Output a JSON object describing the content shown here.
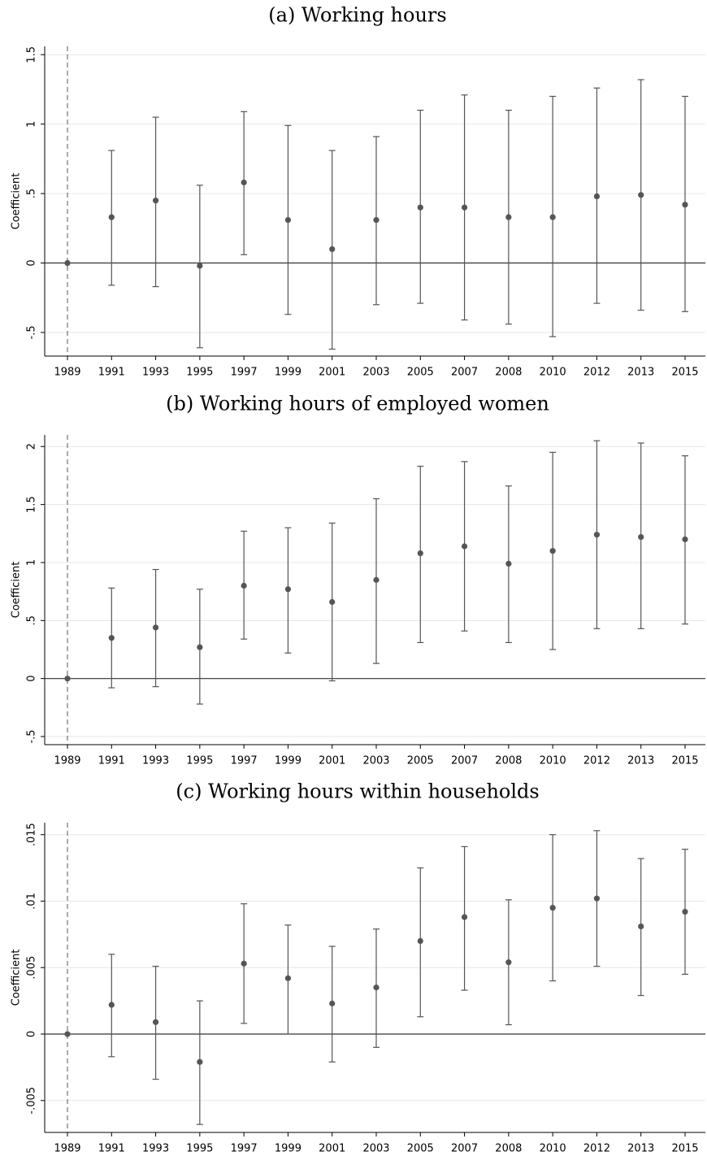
{
  "chart_data": [
    {
      "type": "errorbar",
      "title": "(a) Working hours",
      "y_label": "Coefficient",
      "categories": [
        "1989",
        "1991",
        "1993",
        "1995",
        "1997",
        "1999",
        "2001",
        "2003",
        "2005",
        "2007",
        "2008",
        "2010",
        "2012",
        "2013",
        "2015"
      ],
      "values": [
        0,
        0.33,
        0.45,
        -0.02,
        0.58,
        0.31,
        0.1,
        0.31,
        0.4,
        0.4,
        0.33,
        0.33,
        0.48,
        0.49,
        0.42
      ],
      "lower": [
        0,
        -0.16,
        -0.17,
        -0.61,
        0.06,
        -0.37,
        -0.62,
        -0.3,
        -0.29,
        -0.41,
        -0.44,
        -0.53,
        -0.29,
        -0.34,
        -0.35
      ],
      "upper": [
        0,
        0.81,
        1.05,
        0.56,
        1.09,
        0.99,
        0.81,
        0.91,
        1.1,
        1.21,
        1.1,
        1.2,
        1.26,
        1.32,
        1.2
      ],
      "color": "#555555",
      "ylim": [
        -0.67,
        1.56
      ],
      "yticks": [
        {
          "value": -0.5,
          "label": "-.5"
        },
        0,
        {
          "value": 0.5,
          "label": ".5"
        },
        1,
        1.5
      ],
      "grid": true
    },
    {
      "type": "errorbar",
      "title": "(b) Working hours of employed women",
      "y_label": "Coefficient",
      "categories": [
        "1989",
        "1991",
        "1993",
        "1995",
        "1997",
        "1999",
        "2001",
        "2003",
        "2005",
        "2007",
        "2008",
        "2010",
        "2012",
        "2013",
        "2015"
      ],
      "values": [
        0,
        0.35,
        0.44,
        0.27,
        0.8,
        0.77,
        0.66,
        0.85,
        1.08,
        1.14,
        0.99,
        1.1,
        1.24,
        1.22,
        1.2
      ],
      "lower": [
        0,
        -0.08,
        -0.07,
        -0.22,
        0.34,
        0.22,
        -0.02,
        0.13,
        0.31,
        0.41,
        0.31,
        0.25,
        0.43,
        0.43,
        0.47
      ],
      "upper": [
        0,
        0.78,
        0.94,
        0.77,
        1.27,
        1.3,
        1.34,
        1.55,
        1.83,
        1.87,
        1.66,
        1.95,
        2.05,
        2.03,
        1.92
      ],
      "color": "#555555",
      "ylim": [
        -0.57,
        2.1
      ],
      "yticks": [
        {
          "value": -0.5,
          "label": "-.5"
        },
        0,
        {
          "value": 0.5,
          "label": ".5"
        },
        1,
        1.5,
        2
      ],
      "grid": true
    },
    {
      "type": "errorbar",
      "title": "(c) Working hours within households",
      "y_label": "Coefficient",
      "categories": [
        "1989",
        "1991",
        "1993",
        "1995",
        "1997",
        "1999",
        "2001",
        "2003",
        "2005",
        "2007",
        "2008",
        "2010",
        "2012",
        "2013",
        "2015"
      ],
      "values": [
        0,
        0.0022,
        0.0009,
        -0.0021,
        0.0053,
        0.0042,
        0.0023,
        0.0035,
        0.007,
        0.0088,
        0.0054,
        0.0095,
        0.0102,
        0.0081,
        0.0092
      ],
      "lower": [
        0,
        -0.0017,
        -0.0034,
        -0.0068,
        0.0008,
        0.0,
        -0.0021,
        -0.001,
        0.0013,
        0.0033,
        0.0007,
        0.004,
        0.0051,
        0.0029,
        0.0045
      ],
      "upper": [
        0,
        0.006,
        0.0051,
        0.0025,
        0.0098,
        0.0082,
        0.0066,
        0.0079,
        0.0125,
        0.0141,
        0.0101,
        0.015,
        0.0153,
        0.0132,
        0.0139
      ],
      "color": "#555555",
      "ylim": [
        -0.0074,
        0.0159
      ],
      "yticks": [
        {
          "value": -0.005,
          "label": "-.005"
        },
        0,
        {
          "value": 0.005,
          "label": ".005"
        },
        {
          "value": 0.01,
          "label": ".01"
        },
        {
          "value": 0.015,
          "label": ".015"
        }
      ],
      "grid": true
    }
  ]
}
